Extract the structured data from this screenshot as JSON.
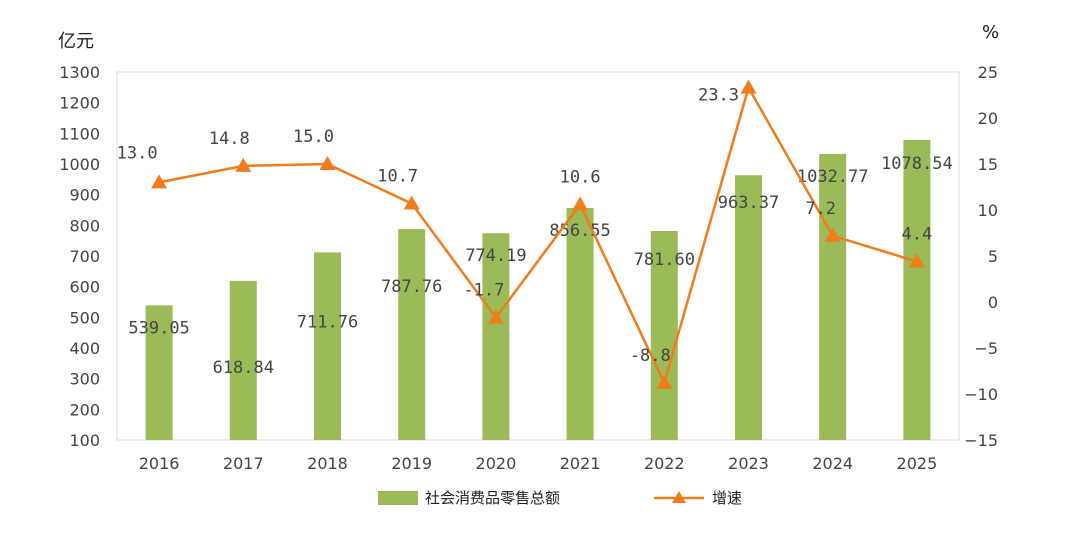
{
  "chart_data": {
    "type": "bar",
    "categories": [
      "2016",
      "2017",
      "2018",
      "2019",
      "2020",
      "2021",
      "2022",
      "2023",
      "2024",
      "2025"
    ],
    "series": [
      {
        "name": "社会消费品零售总额",
        "type": "bar",
        "axis": "left",
        "values": [
          539.05,
          618.84,
          711.76,
          787.76,
          774.19,
          856.55,
          781.6,
          963.37,
          1032.77,
          1078.54
        ],
        "labels": [
          "539.05",
          "618.84",
          "711.76",
          "787.76",
          "774.19",
          "856.55",
          "781.60",
          "963.37",
          "1032.77",
          "1078.54"
        ],
        "color": "#9bbb59"
      },
      {
        "name": "增速",
        "type": "line",
        "axis": "right",
        "values": [
          13.0,
          14.8,
          15.0,
          10.7,
          -1.7,
          10.6,
          -8.8,
          23.3,
          7.2,
          4.4
        ],
        "labels": [
          "13.0",
          "14.8",
          "15.0",
          "10.7",
          "-1.7",
          "10.6",
          "-8.8",
          "23.3",
          "7.2",
          "4.4"
        ],
        "color": "#f07c1a",
        "marker": "triangle"
      }
    ],
    "left_axis": {
      "unit": "亿元",
      "ylim": [
        100,
        1300
      ],
      "ticks": [
        "100",
        "200",
        "300",
        "400",
        "500",
        "600",
        "700",
        "800",
        "900",
        "1000",
        "1100",
        "1200",
        "1300"
      ]
    },
    "right_axis": {
      "unit": "%",
      "ylim": [
        -15,
        25
      ],
      "ticks": [
        "−15",
        "−10",
        "−5",
        "0",
        "5",
        "10",
        "15",
        "20",
        "25"
      ]
    },
    "grid": false,
    "legend": "bottom"
  }
}
